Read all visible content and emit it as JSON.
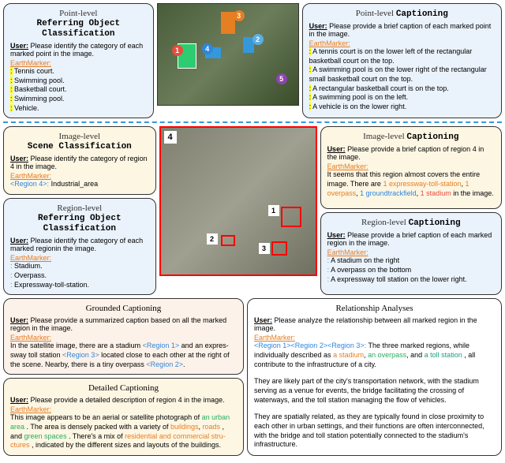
{
  "top_left": {
    "title_prefix": "Point-level",
    "title_suffix": "Referring Object Classification",
    "user_label": "User:",
    "user_text": "Please identify the category of each marked point in the image.",
    "em_label": "EarthMarker:",
    "marks": [
      {
        "tag": "<Mark 1>:",
        "text": "Tennis court.",
        "color": "c-red"
      },
      {
        "tag": "<Mark 2>:",
        "text": "Swimming pool.",
        "color": "c-lightblue"
      },
      {
        "tag": "<Mark 3>:",
        "text": "Basketball court.",
        "color": "c-orange"
      },
      {
        "tag": "<Mark 4>:",
        "text": "Swimming pool.",
        "color": "c-blue"
      },
      {
        "tag": "<Mark 5>:",
        "text": "Vehicle.",
        "color": "c-purple"
      }
    ]
  },
  "top_right": {
    "title_prefix": "Point-level",
    "title_suffix": "Captioning",
    "user_label": "User:",
    "user_text": "Please provide a brief caption of each marked point in the image.",
    "em_label": "EarthMarker:",
    "marks": [
      {
        "tag": "<Mark 1>:",
        "text": "A tennis court is on the lower left of the rectangular basketball court on the top.",
        "color": "c-red"
      },
      {
        "tag": "<Mark 2>:",
        "text": "A swimming pool is on the lower right of the rectangular small basketball court on the top.",
        "color": "c-lightblue"
      },
      {
        "tag": "<Mark 3>:",
        "text": "A rectangular basketball court is on the top.",
        "color": "c-orange"
      },
      {
        "tag": "<Mark 4>:",
        "text": "A swimming pool is on the left.",
        "color": "c-blue"
      },
      {
        "tag": "<Mark 5>:",
        "text": "A vehicle is on the lower right.",
        "color": "c-purple"
      }
    ]
  },
  "mid_scene": {
    "title_prefix": "Image-level",
    "title_suffix": "Scene Classification",
    "user_label": "User:",
    "user_text": "Please identify the category of region 4 in the image.",
    "em_label": "EarthMarker:",
    "region_tag": "<Region 4>:",
    "region_text": "Industrial_area"
  },
  "mid_region_cls": {
    "title_prefix": "Region-level",
    "title_suffix": "Referring Object Classification",
    "user_label": "User:",
    "user_text": "Please identify the category of each marked regionin the image.",
    "em_label": "EarthMarker:",
    "regions": [
      {
        "tag": "<Region 1>:",
        "text": "Stadium."
      },
      {
        "tag": "<Region 2>:",
        "text": "Overpass."
      },
      {
        "tag": "<Region 3>:",
        "text": "Expressway-toll-station."
      }
    ]
  },
  "mid_img_cap": {
    "title_prefix": "Image-level",
    "title_suffix": "Captioning",
    "user_label": "User:",
    "user_text": "Please provide a brief caption of region 4 in the image.",
    "em_label": "EarthMarker:",
    "body_pre": "It seems that this region almost covers the entire image. There are ",
    "h1": "1 expressway-toll-station",
    "c1": "c-orange",
    "h2": "1 overpass",
    "c2": "c-orange",
    "h3": "1 groundtrackfield",
    "c3": "c-blue",
    "h4": "1 stadium",
    "c4": "c-red",
    "body_post": " in the image."
  },
  "mid_region_cap": {
    "title_prefix": "Region-level",
    "title_suffix": "Captioning",
    "user_label": "User:",
    "user_text": "Please provide a brief caption of each marked region in the image.",
    "em_label": "EarthMarker:",
    "regions": [
      {
        "tag": "<Region 1>:",
        "text": "A stadium on the right"
      },
      {
        "tag": "<Region 2>:",
        "text": "A overpass on the bottom"
      },
      {
        "tag": "<Region 3>:",
        "text": "A expressway toll station on the lower right."
      }
    ]
  },
  "grounded": {
    "title": "Grounded Captioning",
    "user_label": "User:",
    "user_text": "Please provide a summarized caption based on all the marked region in the image.",
    "em_label": "EarthMarker:",
    "body": "In the satellite image, there are a stadium <Region 1> and an  expres- sway toll station <Region 3> located close to each other at the right of the scene. Nearby, there is a tiny overpass <Region 2>."
  },
  "detailed": {
    "title": "Detailed Captioning",
    "user_label": "User:",
    "user_text": "Please provide a detailed description of region 4 in the image.",
    "em_label": "EarthMarker:",
    "body_pre": "This image appears to be an aerial or satellite photograph of ",
    "h1": "an urban area",
    "h1c": "c-green",
    "body_mid1": ". The area is densely packed with a variety of ",
    "h2": "buildings",
    "h2c": "c-orange",
    "h3": "roads",
    "h3c": "c-orange",
    "body_mid2": ", and ",
    "h4": "green spaces",
    "h4c": "c-green",
    "body_mid3": ". There's a mix of ",
    "h5": "residential and commercial stru- ctures",
    "h5c": "c-orange",
    "body_post": ", indicated by the different sizes and layouts of the buildings."
  },
  "relationship": {
    "title": "Relationship Analyses",
    "user_label": "User:",
    "user_text": "Please analyze the relationship between all marked region in the image.",
    "em_label": "EarthMarker:",
    "region_tags": "<Region 1><Region 2><Region 3>:",
    "p1_pre": " The three marked regions, while individually described as ",
    "h1": "a stadium",
    "h1c": "c-orange",
    "h2": "an overpass",
    "h2c": "c-green",
    "h3": "a toll station",
    "h3c": "c-cyan",
    "p1_post": ", all contribute to the infrastructure of a city.",
    "p2": "They are likely part of the city's transportation network, with the stadium serving as a venue for events, the bridge facilitating the crossing of waterways, and the toll station managing the flow of vehicles.",
    "p3": "They are spatially related, as they are typically found in close proximity to each other in urban settings, and their functions are often interconnected, with the bridge and toll station potentially connected to the stadium's infrastructure."
  },
  "colors": {
    "tag1": "#e74c3c",
    "tag2": "#5dade2",
    "tag3": "#e67e22",
    "tag4": "#2e86de",
    "tag5": "#8e44ad"
  }
}
